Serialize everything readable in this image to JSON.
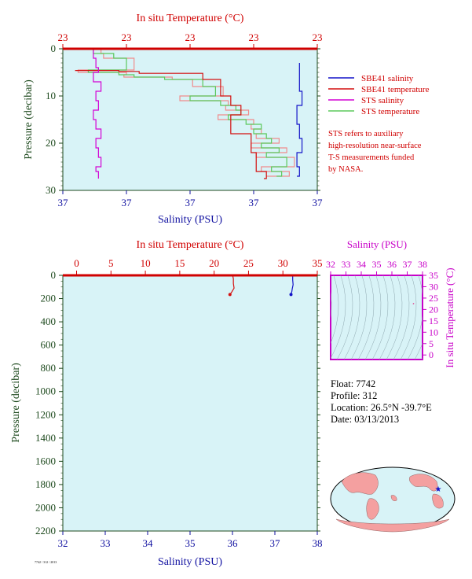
{
  "colors": {
    "plot_bg": "#d8f3f7",
    "temperature_axis": "#d00000",
    "salinity_axis": "#1010a0",
    "pressure_axis": "#1e4a1e",
    "sbe41_salinity": "#1414c8",
    "sbe41_temperature": "#d41010",
    "sts_salinity": "#d400d4",
    "sts_temperature": "#5cc85c",
    "sts_temperature_light": "#f08c8c",
    "ts_axis": "#c800c8"
  },
  "legend": {
    "sbe41_salinity": "SBE41 salinity",
    "sbe41_temperature": "SBE41 temperature",
    "sts_salinity": "STS salinity",
    "sts_temperature": "STS temperature",
    "note_lines": [
      "STS refers to auxiliary",
      "high-resolution near-surface",
      "T-S measurements funded",
      "by NASA."
    ]
  },
  "info": {
    "float": "Float:  7742",
    "profile": "Profile:  312",
    "location": "Location:  26.5°N  -39.7°E",
    "date": "Date:  03/13/2013"
  },
  "footer_id": "7742 / 312 / 2013",
  "chart_data": [
    {
      "type": "line",
      "name": "near-surface profile",
      "top_axis_label": "In situ Temperature (°C)",
      "top_tick_labels": [
        "23",
        "23",
        "23",
        "23",
        "23"
      ],
      "bottom_axis_label": "Salinity (PSU)",
      "bottom_tick_labels": [
        "37",
        "37",
        "37",
        "37",
        "37"
      ],
      "ylabel": "Pressure (decibar)",
      "ylim": [
        0,
        30
      ],
      "y_ticks": [
        0,
        10,
        20,
        30
      ],
      "series": [
        {
          "name": "STS temperature",
          "x_frac": [
            0.12,
            0.2,
            0.25,
            0.1,
            0.22,
            0.28,
            0.4,
            0.55,
            0.6,
            0.5,
            0.62,
            0.68,
            0.7,
            0.65,
            0.72,
            0.78,
            0.75,
            0.8,
            0.82,
            0.78,
            0.85,
            0.8,
            0.88,
            0.82,
            0.86,
            0.84
          ],
          "pressure": [
            0,
            1,
            2,
            4.5,
            5,
            5.5,
            6,
            6.5,
            8,
            10,
            11,
            12,
            13,
            14,
            15,
            16,
            17,
            18,
            19,
            20,
            21,
            22,
            23,
            25,
            26,
            27
          ]
        },
        {
          "name": "SBE41 temperature",
          "x_frac": [
            0.05,
            0.22,
            0.3,
            0.55,
            0.62,
            0.66,
            0.7,
            0.66,
            0.74,
            0.76,
            0.8,
            0.79
          ],
          "pressure": [
            4.5,
            4.6,
            4.8,
            5.2,
            6.5,
            10,
            12,
            14,
            18,
            22,
            26,
            27.5
          ]
        },
        {
          "name": "STS salinity",
          "x_frac": [
            0.12,
            0.13,
            0.14,
            0.12,
            0.15,
            0.13,
            0.14,
            0.12,
            0.13,
            0.15,
            0.13,
            0.14,
            0.15,
            0.13,
            0.14,
            0.14
          ],
          "pressure": [
            0,
            2,
            4,
            5,
            7,
            9,
            11,
            13,
            15,
            17,
            19,
            21,
            23,
            25,
            26,
            27.5
          ]
        },
        {
          "name": "SBE41 salinity",
          "x_frac": [
            0.93,
            0.93,
            0.94,
            0.92,
            0.93,
            0.94,
            0.92,
            0.93,
            0.92
          ],
          "pressure": [
            3,
            6,
            9,
            12,
            16,
            19,
            22,
            25,
            27
          ]
        }
      ]
    },
    {
      "type": "line",
      "name": "full profile",
      "top_axis_label": "In situ Temperature (°C)",
      "top_ticks": [
        0,
        5,
        10,
        15,
        20,
        25,
        30,
        35
      ],
      "xlim_temperature": [
        -2,
        35
      ],
      "bottom_axis_label": "Salinity (PSU)",
      "bottom_ticks": [
        32,
        33,
        34,
        35,
        36,
        37,
        38
      ],
      "xlim_salinity": [
        32,
        38
      ],
      "ylabel": "Pressure (decibar)",
      "ylim": [
        0,
        2200
      ],
      "y_ticks": [
        0,
        200,
        400,
        600,
        800,
        1000,
        1200,
        1400,
        1600,
        1800,
        2000,
        2200
      ],
      "series": [
        {
          "name": "SBE41 temperature",
          "x": [
            22.7,
            22.8,
            22.8,
            22.9,
            22.6,
            22.3
          ],
          "pressure": [
            0,
            30,
            70,
            110,
            140,
            165
          ]
        },
        {
          "name": "SBE41 salinity",
          "x": [
            37.42,
            37.42,
            37.43,
            37.41,
            37.4,
            37.38
          ],
          "pressure": [
            0,
            40,
            80,
            115,
            140,
            165
          ]
        }
      ]
    },
    {
      "type": "line",
      "name": "T-S diagram",
      "top_axis_label": "Salinity (PSU)",
      "top_ticks": [
        32,
        33,
        34,
        35,
        36,
        37,
        38
      ],
      "xlim": [
        32,
        38
      ],
      "right_axis_label": "In situ Temperature (°C)",
      "right_ticks": [
        0,
        5,
        10,
        15,
        20,
        25,
        30,
        35
      ],
      "ylim": [
        -2,
        35
      ],
      "series": [
        {
          "name": "profile",
          "x": [
            37.4,
            37.42
          ],
          "y": [
            22.3,
            22.8
          ]
        }
      ]
    }
  ]
}
